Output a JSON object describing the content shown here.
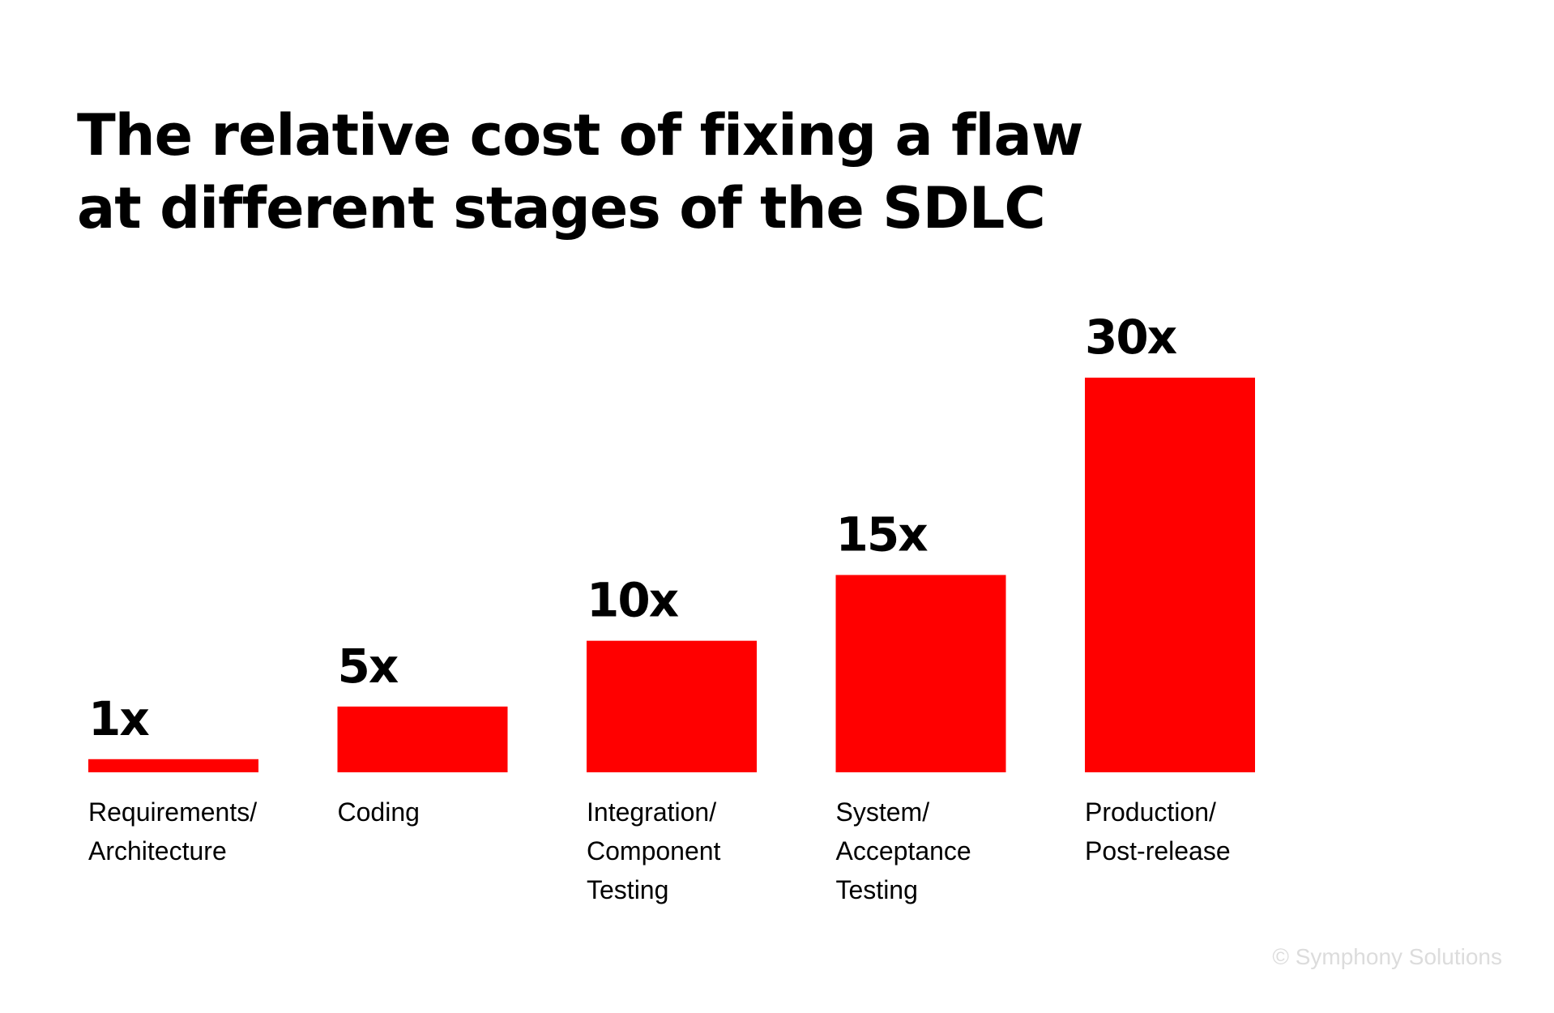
{
  "chart_data": {
    "type": "bar",
    "title": [
      "The relative cost of fixing a flaw",
      "at different stages of the SDLC"
    ],
    "categories": [
      [
        "Requirements/",
        "Architecture"
      ],
      [
        "Coding"
      ],
      [
        "Integration/",
        "Component",
        "Testing"
      ],
      [
        "System/",
        "Acceptance",
        "Testing"
      ],
      [
        "Production/",
        "Post-release"
      ]
    ],
    "values": [
      1,
      5,
      10,
      15,
      30
    ],
    "value_labels": [
      "1x",
      "5x",
      "10x",
      "15x",
      "30x"
    ],
    "xlabel": "",
    "ylabel": "",
    "ylim": [
      0,
      30
    ],
    "grid": false,
    "legend": "none",
    "bar_color": "#ff0000"
  },
  "footer": {
    "credit": "© Symphony Solutions"
  }
}
